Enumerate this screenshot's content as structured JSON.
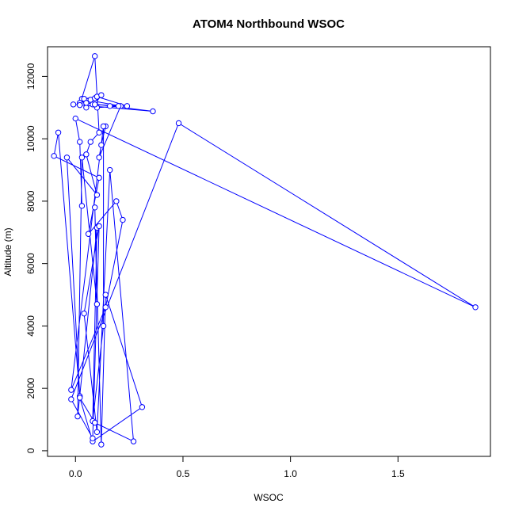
{
  "chart_data": {
    "type": "line",
    "title": "ATOM4 Northbound WSOC",
    "xlabel": "WSOC",
    "ylabel": "Altitude (m)",
    "xlim": [
      -0.13,
      1.93
    ],
    "ylim": [
      -180,
      12950
    ],
    "xticks": [
      0.0,
      0.5,
      1.0,
      1.5
    ],
    "xtick_labels": [
      "0.0",
      "0.5",
      "1.0",
      "1.5"
    ],
    "yticks": [
      0,
      2000,
      4000,
      6000,
      8000,
      10000,
      12000
    ],
    "ytick_labels": [
      "0",
      "2000",
      "4000",
      "6000",
      "8000",
      "10000",
      "12000"
    ],
    "grid": false,
    "line_color": "#0000ff",
    "marker": "open-circle",
    "series": [
      {
        "x": [
          0.14,
          0.12,
          0.11,
          0.21,
          0.09,
          0.07,
          0.05,
          0.03,
          0.09,
          0.02,
          0.04,
          0.1,
          0.24,
          0.1,
          0.08,
          0.2,
          0.09,
          0.12,
          0.05,
          0.16,
          0.36,
          -0.01,
          0.02,
          0.09,
          0.11,
          0.07,
          0.05,
          0.1,
          -0.04,
          0.02,
          -0.08,
          -0.1,
          0.11,
          0.06,
          0.19,
          0.22,
          0.14,
          -0.02,
          0.13,
          0.13,
          0.08,
          0.1,
          0.01,
          0.03,
          0.1,
          0.09,
          0.12,
          0.14,
          0.31,
          0.08,
          0.02,
          0.09,
          0.27,
          0.16,
          0.1,
          0.04,
          0.11,
          0.08,
          -0.02,
          0.48,
          1.86,
          0.0,
          0.02,
          0.03
        ]
      }
    ],
    "points": [
      [
        0.14,
        10400
      ],
      [
        0.12,
        9800
      ],
      [
        0.11,
        9400
      ],
      [
        0.21,
        11050
      ],
      [
        0.09,
        11200
      ],
      [
        0.07,
        11250
      ],
      [
        0.05,
        11000
      ],
      [
        0.03,
        11280
      ],
      [
        0.09,
        11300
      ],
      [
        0.02,
        11150
      ],
      [
        0.04,
        11280
      ],
      [
        0.1,
        11350
      ],
      [
        0.24,
        11050
      ],
      [
        0.1,
        11000
      ],
      [
        0.08,
        11100
      ],
      [
        0.2,
        11050
      ],
      [
        0.09,
        11100
      ],
      [
        0.12,
        11400
      ],
      [
        0.05,
        11150
      ],
      [
        0.16,
        11050
      ],
      [
        0.36,
        10880
      ],
      [
        -0.01,
        11100
      ],
      [
        0.02,
        11080
      ],
      [
        0.09,
        12650
      ],
      [
        0.11,
        10200
      ],
      [
        0.07,
        9900
      ],
      [
        0.05,
        9500
      ],
      [
        0.1,
        8200
      ],
      [
        -0.04,
        9400
      ],
      [
        0.02,
        1750
      ],
      [
        -0.08,
        10200
      ],
      [
        -0.1,
        9450
      ],
      [
        0.11,
        8750
      ],
      [
        0.06,
        6950
      ],
      [
        0.19,
        8000
      ],
      [
        0.22,
        7400
      ],
      [
        0.14,
        4600
      ],
      [
        -0.02,
        1950
      ],
      [
        0.13,
        10400
      ],
      [
        0.13,
        4000
      ],
      [
        0.08,
        950
      ],
      [
        0.1,
        7150
      ],
      [
        0.01,
        1100
      ],
      [
        0.03,
        9400
      ],
      [
        0.1,
        4700
      ],
      [
        0.09,
        7800
      ],
      [
        0.12,
        200
      ],
      [
        0.14,
        5000
      ],
      [
        0.31,
        1400
      ],
      [
        0.08,
        300
      ],
      [
        0.02,
        1700
      ],
      [
        0.09,
        900
      ],
      [
        0.27,
        300
      ],
      [
        0.16,
        9000
      ],
      [
        0.1,
        600
      ],
      [
        0.04,
        4400
      ],
      [
        0.11,
        7200
      ],
      [
        0.08,
        400
      ],
      [
        -0.02,
        1650
      ],
      [
        0.48,
        10500
      ],
      [
        1.86,
        4600
      ],
      [
        0.0,
        10650
      ],
      [
        0.02,
        9900
      ],
      [
        0.03,
        7850
      ]
    ]
  }
}
